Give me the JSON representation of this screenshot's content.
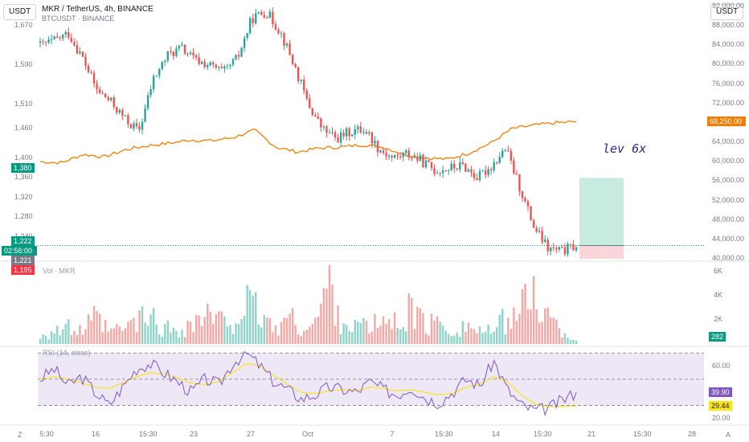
{
  "header": {
    "symbol_line": "MKR / TetherUS, 4h, BINANCE",
    "compare_line": "BTCUSDT · BINANCE"
  },
  "left_currency_button": "USDT",
  "right_currency_button": "USDT",
  "annotation": "lev 6x",
  "left_axis": {
    "ticks": [
      "1,670",
      "1,590",
      "1,510",
      "1,460",
      "1,400",
      "1,360",
      "1,320",
      "1,280",
      "1,240"
    ],
    "tags": [
      {
        "label": "1,380",
        "color": "#089981"
      },
      {
        "label": "1,222",
        "color": "#089981"
      },
      {
        "label": "02:56:00",
        "color": "#089981"
      },
      {
        "label": "1,221",
        "color": "#787b86"
      },
      {
        "label": "1,195",
        "color": "#f23645"
      }
    ]
  },
  "right_axis": {
    "ticks": [
      "92,000.00",
      "88,000.00",
      "84,000.00",
      "80,000.00",
      "76,000.00",
      "72,000.00",
      "68,250.00",
      "64,000.00",
      "60,000.00",
      "56,000.00",
      "52,000.00",
      "48,000.00",
      "44,000.00",
      "40,000.00"
    ],
    "btc_tag": {
      "label": "68,250.00",
      "color": "#f57c00"
    }
  },
  "volume_pane": {
    "label": "Vol · MKR",
    "ticks": [
      "6K",
      "4K",
      "2K"
    ],
    "last_tag": {
      "label": "282",
      "color": "#089981"
    }
  },
  "rsi_pane": {
    "label": "RSI (14, close)",
    "ticks": [
      "60.00",
      "20.00"
    ],
    "rsi_tag": {
      "label": "39.90",
      "color": "#7e57c2"
    },
    "ma_tag": {
      "label": "29.44",
      "color": "#f9e51b"
    }
  },
  "time_axis": {
    "ticks": [
      "5:30",
      "16",
      "15:30",
      "23",
      "27",
      "Oct",
      "7",
      "15:30",
      "14",
      "15:30",
      "21",
      "15:30",
      "28"
    ]
  },
  "corner": {
    "left": "Z",
    "right": "A"
  },
  "colors": {
    "up": "#26a69a",
    "down": "#ef5350",
    "btc_line": "#f57c00",
    "rsi_line": "#7e57c2",
    "rsi_ma": "#f9e51b",
    "rsi_band": "#ede7f6",
    "profit_zone": "#c8ebe1",
    "loss_zone": "#fbd5da"
  },
  "chart_data": {
    "type": "candlestick",
    "symbol": "MKR / TetherUS",
    "interval": "4h",
    "y_range": [
      1195,
      1710
    ],
    "candles_anchor_closes": [
      1630,
      1640,
      1655,
      1605,
      1540,
      1515,
      1480,
      1455,
      1560,
      1610,
      1625,
      1600,
      1590,
      1575,
      1605,
      1685,
      1700,
      1660,
      1590,
      1510,
      1460,
      1440,
      1455,
      1460,
      1420,
      1400,
      1410,
      1395,
      1375,
      1380,
      1385,
      1360,
      1385,
      1420,
      1340,
      1260,
      1215,
      1210,
      1222
    ],
    "btc_y_range": [
      40000,
      92000
    ],
    "btc_anchor_closes": [
      60000,
      59800,
      61500,
      61000,
      62500,
      63300,
      63800,
      64500,
      64300,
      65000,
      66500,
      63000,
      62000,
      62800,
      63000,
      63500,
      63000,
      61500,
      60800,
      60500,
      61800,
      63800,
      66800,
      67500,
      68000,
      68250
    ],
    "volume": {
      "y_range": [
        0,
        6500
      ],
      "anchor_values": [
        900,
        1300,
        1500,
        1200,
        2400,
        1200,
        1400,
        2200,
        2600,
        1500,
        1400,
        1900,
        2800,
        2100,
        2400,
        3600,
        3000,
        1400,
        2600,
        1600,
        1900,
        5800,
        2100,
        1800,
        1600,
        2200,
        1900,
        3500,
        1700,
        2100,
        1400,
        1800,
        1300,
        1100,
        2700,
        3200,
        5200,
        2400,
        1200,
        282
      ]
    },
    "rsi": {
      "y_range": [
        18,
        72
      ],
      "bands": [
        70,
        50,
        30
      ],
      "anchor_values": [
        50,
        58,
        45,
        52,
        40,
        30,
        44,
        58,
        62,
        55,
        48,
        40,
        50,
        46,
        62,
        70,
        60,
        48,
        42,
        35,
        38,
        44,
        42,
        40,
        48,
        42,
        38,
        44,
        36,
        32,
        40,
        50,
        45,
        64,
        42,
        30,
        26,
        28,
        34,
        39.9
      ],
      "ma_anchor_values": [
        50,
        52,
        50,
        47,
        44,
        43,
        47,
        52,
        55,
        54,
        51,
        47,
        46,
        48,
        55,
        62,
        60,
        53,
        46,
        40,
        39,
        41,
        42,
        41,
        44,
        43,
        41,
        42,
        40,
        38,
        39,
        44,
        46,
        52,
        48,
        38,
        31,
        29,
        29,
        29.44
      ]
    },
    "position": {
      "entry": 1222,
      "target": 1360,
      "stop": 1195
    }
  }
}
